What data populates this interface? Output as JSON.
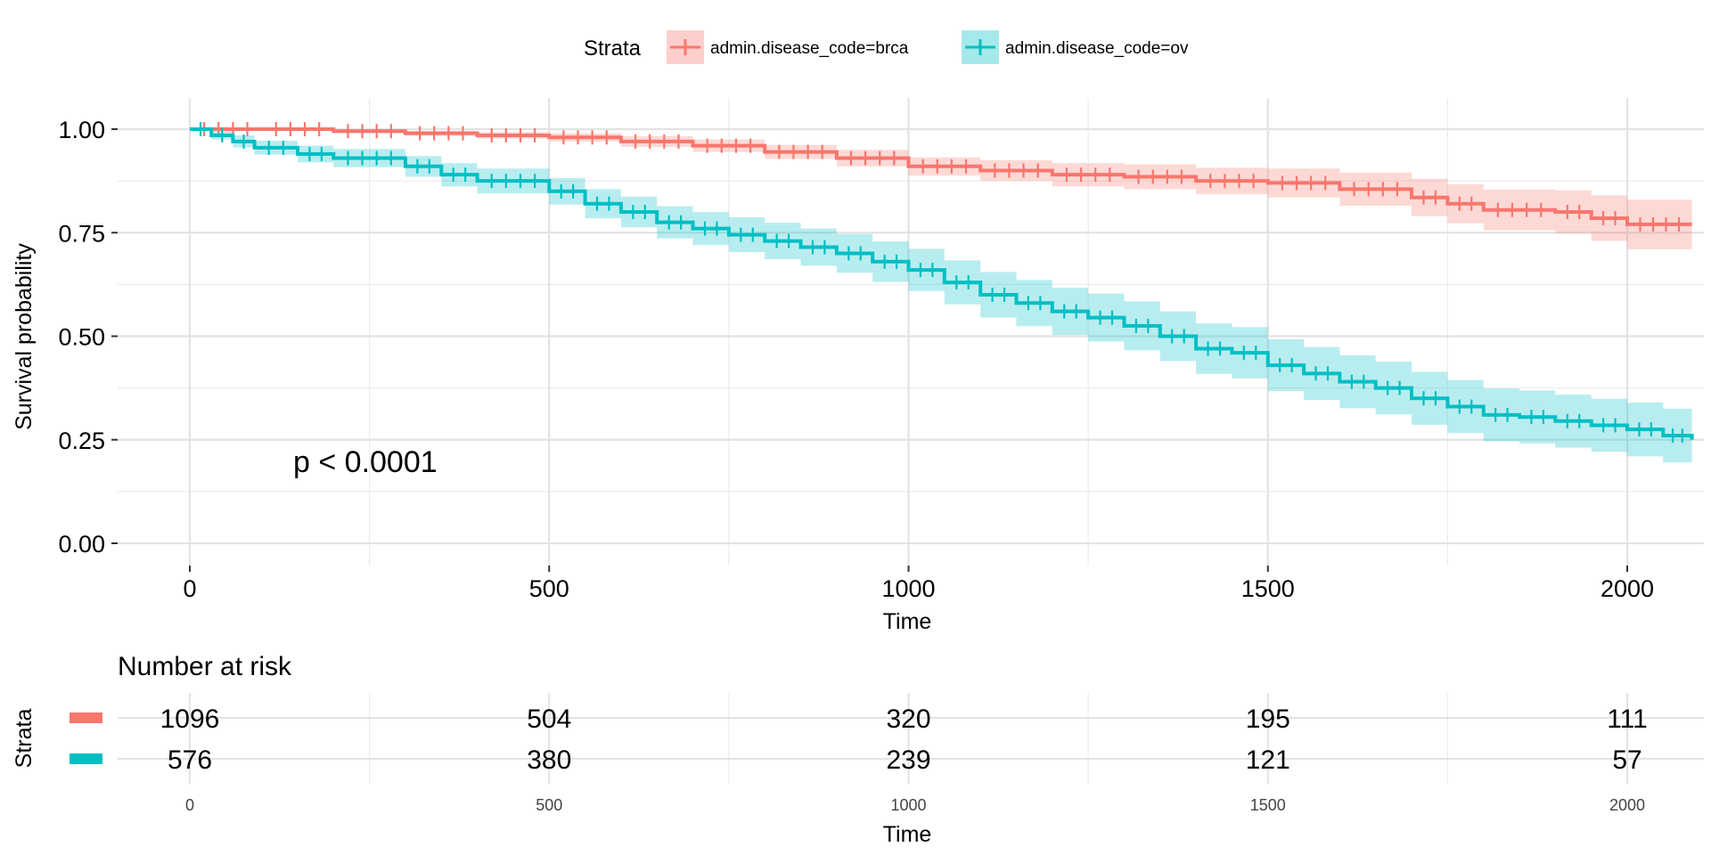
{
  "legend": {
    "title": "Strata",
    "position": "top",
    "items": [
      {
        "label": "admin.disease_code=brca",
        "color": "#F8766D"
      },
      {
        "label": "admin.disease_code=ov",
        "color": "#00BFC4"
      }
    ]
  },
  "annotation": {
    "pvalue": "p < 0.0001"
  },
  "chart_data": {
    "type": "line",
    "subtype": "kaplan-meier step curve with confidence bands and censor marks",
    "xlabel": "Time",
    "ylabel": "Survival probability",
    "xlim": [
      -50,
      2090
    ],
    "ylim": [
      0,
      1.05
    ],
    "x_ticks": [
      0,
      500,
      1000,
      1500,
      2000
    ],
    "x_tick_labels": [
      "0",
      "500",
      "1000",
      "1500",
      "2000"
    ],
    "y_ticks": [
      0,
      0.25,
      0.5,
      0.75,
      1.0
    ],
    "y_tick_labels": [
      "0.00",
      "0.25",
      "0.50",
      "0.75",
      "1.00"
    ],
    "grid": true,
    "series": [
      {
        "name": "admin.disease_code=brca",
        "color": "#F8766D",
        "band_color": "#F8766D",
        "x": [
          0,
          100,
          200,
          300,
          400,
          500,
          600,
          700,
          800,
          900,
          1000,
          1100,
          1200,
          1300,
          1400,
          1500,
          1600,
          1700,
          1750,
          1800,
          1900,
          1950,
          2000,
          2090
        ],
        "y": [
          1.0,
          1.0,
          0.995,
          0.99,
          0.985,
          0.98,
          0.97,
          0.96,
          0.945,
          0.93,
          0.91,
          0.9,
          0.89,
          0.885,
          0.875,
          0.87,
          0.855,
          0.835,
          0.82,
          0.805,
          0.8,
          0.785,
          0.77,
          0.77
        ],
        "lower": [
          1.0,
          0.997,
          0.99,
          0.984,
          0.977,
          0.97,
          0.957,
          0.945,
          0.928,
          0.91,
          0.888,
          0.875,
          0.862,
          0.855,
          0.843,
          0.835,
          0.815,
          0.79,
          0.773,
          0.756,
          0.748,
          0.73,
          0.71,
          0.705
        ],
        "upper": [
          1.0,
          1.0,
          1.0,
          0.996,
          0.993,
          0.99,
          0.983,
          0.975,
          0.962,
          0.95,
          0.932,
          0.925,
          0.918,
          0.915,
          0.907,
          0.905,
          0.895,
          0.88,
          0.867,
          0.854,
          0.852,
          0.84,
          0.83,
          0.83
        ]
      },
      {
        "name": "admin.disease_code=ov",
        "color": "#00BFC4",
        "band_color": "#00BFC4",
        "x": [
          0,
          30,
          60,
          90,
          150,
          200,
          300,
          350,
          400,
          500,
          550,
          600,
          650,
          700,
          750,
          800,
          850,
          900,
          950,
          1000,
          1050,
          1100,
          1150,
          1200,
          1250,
          1300,
          1350,
          1400,
          1450,
          1500,
          1550,
          1600,
          1650,
          1700,
          1750,
          1800,
          1850,
          1900,
          1950,
          2000,
          2050,
          2090
        ],
        "y": [
          1.0,
          0.985,
          0.97,
          0.955,
          0.94,
          0.93,
          0.91,
          0.89,
          0.875,
          0.85,
          0.82,
          0.8,
          0.775,
          0.76,
          0.745,
          0.73,
          0.715,
          0.7,
          0.68,
          0.66,
          0.63,
          0.6,
          0.58,
          0.56,
          0.545,
          0.525,
          0.5,
          0.47,
          0.46,
          0.43,
          0.41,
          0.39,
          0.375,
          0.35,
          0.33,
          0.31,
          0.305,
          0.295,
          0.285,
          0.275,
          0.26,
          0.25
        ],
        "lower": [
          1.0,
          0.975,
          0.956,
          0.938,
          0.92,
          0.908,
          0.885,
          0.862,
          0.845,
          0.818,
          0.785,
          0.763,
          0.736,
          0.72,
          0.703,
          0.686,
          0.67,
          0.653,
          0.631,
          0.609,
          0.577,
          0.545,
          0.524,
          0.503,
          0.487,
          0.466,
          0.44,
          0.409,
          0.398,
          0.367,
          0.346,
          0.326,
          0.311,
          0.286,
          0.266,
          0.246,
          0.241,
          0.231,
          0.221,
          0.21,
          0.195,
          0.185
        ],
        "upper": [
          1.0,
          0.995,
          0.985,
          0.972,
          0.96,
          0.952,
          0.935,
          0.918,
          0.905,
          0.882,
          0.855,
          0.837,
          0.814,
          0.8,
          0.787,
          0.774,
          0.76,
          0.747,
          0.729,
          0.711,
          0.683,
          0.655,
          0.636,
          0.617,
          0.603,
          0.584,
          0.56,
          0.531,
          0.522,
          0.493,
          0.474,
          0.454,
          0.439,
          0.414,
          0.394,
          0.374,
          0.369,
          0.359,
          0.349,
          0.34,
          0.325,
          0.315
        ]
      }
    ]
  },
  "risk_table": {
    "title": "Number at risk",
    "ylabel": "Strata",
    "xlabel": "Time",
    "times": [
      0,
      500,
      1000,
      1500,
      2000
    ],
    "time_labels": [
      "0",
      "500",
      "1000",
      "1500",
      "2000"
    ],
    "rows": [
      {
        "color": "#F8766D",
        "counts": [
          "1096",
          "504",
          "320",
          "195",
          "111"
        ]
      },
      {
        "color": "#00BFC4",
        "counts": [
          "576",
          "380",
          "239",
          "121",
          "57"
        ]
      }
    ]
  }
}
